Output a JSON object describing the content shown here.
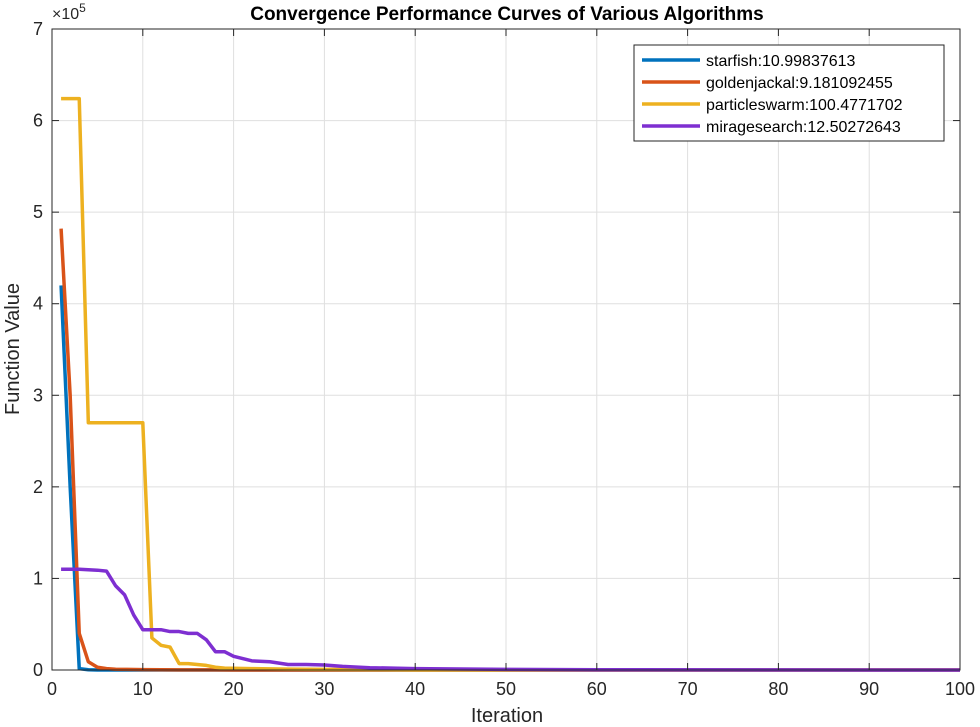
{
  "chart_data": {
    "type": "line",
    "title": "Convergence Performance Curves of Various Algorithms",
    "xlabel": "Iteration",
    "ylabel": "Function Value",
    "y_exponent_label": "×10",
    "y_exponent_power": "5",
    "xlim": [
      0,
      100
    ],
    "ylim": [
      0,
      700000
    ],
    "xticks": [
      0,
      10,
      20,
      30,
      40,
      50,
      60,
      70,
      80,
      90,
      100
    ],
    "yticks": [
      0,
      100000,
      200000,
      300000,
      400000,
      500000,
      600000,
      700000
    ],
    "ytick_labels": [
      "0",
      "1",
      "2",
      "3",
      "4",
      "5",
      "6",
      "7"
    ],
    "grid": true,
    "legend_position": "top-right",
    "series": [
      {
        "name": "starfish:10.99837613",
        "color": "#0072BD",
        "points": [
          [
            1,
            420000
          ],
          [
            2,
            200000
          ],
          [
            3,
            1500
          ],
          [
            4,
            300
          ],
          [
            5,
            50
          ],
          [
            6,
            10
          ],
          [
            100,
            11
          ]
        ]
      },
      {
        "name": "goldenjackal:9.181092455",
        "color": "#D95319",
        "points": [
          [
            1,
            482000
          ],
          [
            2,
            300000
          ],
          [
            3,
            40000
          ],
          [
            4,
            9000
          ],
          [
            5,
            3000
          ],
          [
            6,
            1500
          ],
          [
            7,
            800
          ],
          [
            10,
            400
          ],
          [
            14,
            200
          ],
          [
            18,
            100
          ],
          [
            20,
            50
          ],
          [
            100,
            9.18
          ]
        ]
      },
      {
        "name": "particleswarm:100.4771702",
        "color": "#EDB120",
        "points": [
          [
            1,
            624000
          ],
          [
            3,
            624000
          ],
          [
            4,
            270000
          ],
          [
            10,
            270000
          ],
          [
            11,
            35000
          ],
          [
            12,
            27000
          ],
          [
            13,
            25000
          ],
          [
            14,
            7000
          ],
          [
            15,
            7000
          ],
          [
            17,
            5000
          ],
          [
            18,
            3000
          ],
          [
            19,
            2000
          ],
          [
            22,
            1500
          ],
          [
            26,
            1000
          ],
          [
            30,
            700
          ],
          [
            35,
            400
          ],
          [
            40,
            200
          ],
          [
            50,
            150
          ],
          [
            100,
            100.48
          ]
        ]
      },
      {
        "name": "miragesearch:12.50272643",
        "color": "#7E2FD1",
        "points": [
          [
            1,
            110000
          ],
          [
            3,
            110000
          ],
          [
            5,
            109000
          ],
          [
            6,
            108000
          ],
          [
            7,
            92000
          ],
          [
            8,
            82000
          ],
          [
            9,
            60000
          ],
          [
            10,
            44000
          ],
          [
            12,
            44000
          ],
          [
            13,
            42000
          ],
          [
            14,
            42000
          ],
          [
            15,
            40000
          ],
          [
            16,
            40000
          ],
          [
            17,
            33000
          ],
          [
            18,
            20000
          ],
          [
            19,
            20000
          ],
          [
            20,
            15000
          ],
          [
            22,
            10000
          ],
          [
            24,
            9000
          ],
          [
            26,
            6000
          ],
          [
            28,
            6000
          ],
          [
            30,
            5500
          ],
          [
            32,
            4000
          ],
          [
            35,
            2500
          ],
          [
            40,
            1500
          ],
          [
            50,
            700
          ],
          [
            60,
            300
          ],
          [
            80,
            100
          ],
          [
            100,
            12.5
          ]
        ]
      }
    ]
  }
}
